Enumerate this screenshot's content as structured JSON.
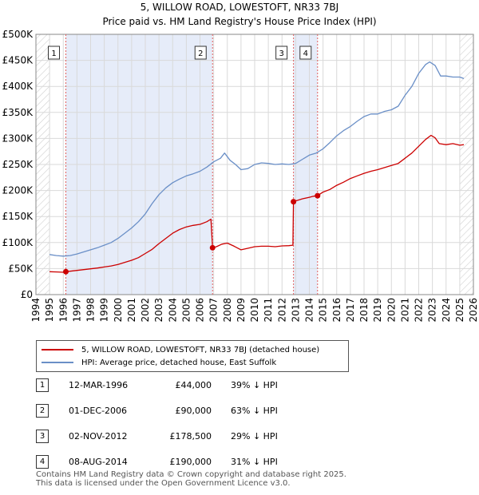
{
  "chart_data": {
    "type": "line",
    "title": "5, WILLOW ROAD, LOWESTOFT, NR33 7BJ",
    "subtitle": "Price paid vs. HM Land Registry's House Price Index (HPI)",
    "xlabel": "",
    "ylabel": "",
    "xlim": [
      1994,
      2026
    ],
    "ylim": [
      0,
      500000
    ],
    "y_ticks": [
      {
        "value": 0,
        "label": "£0"
      },
      {
        "value": 50000,
        "label": "£50K"
      },
      {
        "value": 100000,
        "label": "£100K"
      },
      {
        "value": 150000,
        "label": "£150K"
      },
      {
        "value": 200000,
        "label": "£200K"
      },
      {
        "value": 250000,
        "label": "£250K"
      },
      {
        "value": 300000,
        "label": "£300K"
      },
      {
        "value": 350000,
        "label": "£350K"
      },
      {
        "value": 400000,
        "label": "£400K"
      },
      {
        "value": 450000,
        "label": "£450K"
      },
      {
        "value": 500000,
        "label": "£500K"
      }
    ],
    "x_ticks": [
      "1994",
      "1995",
      "1996",
      "1997",
      "1998",
      "1999",
      "2000",
      "2001",
      "2002",
      "2003",
      "2004",
      "2005",
      "2006",
      "2007",
      "2008",
      "2009",
      "2010",
      "2011",
      "2012",
      "2013",
      "2014",
      "2015",
      "2016",
      "2017",
      "2018",
      "2019",
      "2020",
      "2021",
      "2022",
      "2023",
      "2024",
      "2025",
      "2026"
    ],
    "grid": true,
    "shaded_periods": [
      [
        1996.19,
        2006.92
      ],
      [
        2012.84,
        2014.6
      ]
    ],
    "hatched_regions": [
      [
        1994,
        1995
      ],
      [
        2025,
        2026
      ]
    ],
    "series": [
      {
        "name": "5, WILLOW ROAD, LOWESTOFT, NR33 7BJ (detached house)",
        "color": "#cc0000",
        "x": [
          1995.0,
          1995.5,
          1996.0,
          1996.19,
          1996.5,
          1997.0,
          1997.5,
          1998.0,
          1998.5,
          1999.0,
          1999.5,
          2000.0,
          2000.5,
          2001.0,
          2001.5,
          2002.0,
          2002.5,
          2003.0,
          2003.5,
          2004.0,
          2004.5,
          2005.0,
          2005.5,
          2006.0,
          2006.5,
          2006.8,
          2006.92,
          2007.2,
          2007.6,
          2008.0,
          2008.5,
          2009.0,
          2009.5,
          2010.0,
          2010.5,
          2011.0,
          2011.5,
          2012.0,
          2012.5,
          2012.8,
          2012.84,
          2013.0,
          2013.5,
          2014.0,
          2014.3,
          2014.6,
          2015.0,
          2015.5,
          2016.0,
          2016.5,
          2017.0,
          2017.5,
          2018.0,
          2018.5,
          2019.0,
          2019.5,
          2020.0,
          2020.5,
          2021.0,
          2021.5,
          2022.0,
          2022.5,
          2022.9,
          2023.2,
          2023.5,
          2024.0,
          2024.5,
          2025.0,
          2025.3
        ],
        "values": [
          44000,
          43500,
          43000,
          44000,
          45000,
          46500,
          48000,
          49500,
          51000,
          53000,
          55000,
          58000,
          62000,
          66000,
          71000,
          79000,
          87000,
          98000,
          108000,
          118000,
          125000,
          130000,
          133000,
          135000,
          140000,
          145000,
          90000,
          92000,
          97000,
          99000,
          93000,
          86000,
          89000,
          92000,
          93000,
          93000,
          92000,
          93500,
          94000,
          95000,
          178500,
          180000,
          184000,
          187000,
          189000,
          190000,
          197000,
          202000,
          210000,
          216000,
          223000,
          228000,
          233000,
          237000,
          240000,
          244000,
          248000,
          252000,
          262000,
          272000,
          285000,
          298000,
          306000,
          301000,
          290000,
          288000,
          290000,
          287000,
          288000
        ]
      },
      {
        "name": "HPI: Average price, detached house, East Suffolk",
        "color": "#6a8fc7",
        "x": [
          1995.0,
          1995.5,
          1996.0,
          1996.5,
          1997.0,
          1997.5,
          1998.0,
          1998.5,
          1999.0,
          1999.5,
          2000.0,
          2000.5,
          2001.0,
          2001.5,
          2002.0,
          2002.5,
          2003.0,
          2003.5,
          2004.0,
          2004.5,
          2005.0,
          2005.5,
          2006.0,
          2006.5,
          2007.0,
          2007.5,
          2007.8,
          2008.2,
          2008.6,
          2009.0,
          2009.5,
          2010.0,
          2010.5,
          2011.0,
          2011.5,
          2012.0,
          2012.5,
          2013.0,
          2013.5,
          2014.0,
          2014.5,
          2015.0,
          2015.5,
          2016.0,
          2016.5,
          2017.0,
          2017.5,
          2018.0,
          2018.5,
          2019.0,
          2019.5,
          2020.0,
          2020.5,
          2021.0,
          2021.5,
          2022.0,
          2022.5,
          2022.8,
          2023.2,
          2023.6,
          2024.0,
          2024.5,
          2025.0,
          2025.3
        ],
        "values": [
          77000,
          75000,
          74000,
          75000,
          78000,
          82000,
          86000,
          90000,
          95000,
          100000,
          108000,
          118000,
          128000,
          140000,
          155000,
          175000,
          192000,
          205000,
          215000,
          222000,
          228000,
          232000,
          237000,
          245000,
          255000,
          262000,
          272000,
          258000,
          250000,
          240000,
          242000,
          250000,
          253000,
          252000,
          250000,
          251000,
          250000,
          252000,
          260000,
          268000,
          272000,
          280000,
          292000,
          305000,
          315000,
          323000,
          333000,
          342000,
          347000,
          347000,
          352000,
          355000,
          362000,
          383000,
          400000,
          425000,
          442000,
          447000,
          440000,
          420000,
          420000,
          418000,
          418000,
          415000
        ]
      }
    ],
    "markers": [
      {
        "label": "1",
        "x": 1996.19,
        "y": 44000
      },
      {
        "label": "2",
        "x": 2006.92,
        "y": 90000
      },
      {
        "label": "3",
        "x": 2012.84,
        "y": 178500
      },
      {
        "label": "4",
        "x": 2014.6,
        "y": 190000
      }
    ]
  },
  "legend": {
    "property_label": "5, WILLOW ROAD, LOWESTOFT, NR33 7BJ (detached house)",
    "hpi_label": "HPI: Average price, detached house, East Suffolk"
  },
  "sales": [
    {
      "num": "1",
      "date": "12-MAR-1996",
      "price": "£44,000",
      "hpi": "39% ↓ HPI"
    },
    {
      "num": "2",
      "date": "01-DEC-2006",
      "price": "£90,000",
      "hpi": "63% ↓ HPI"
    },
    {
      "num": "3",
      "date": "02-NOV-2012",
      "price": "£178,500",
      "hpi": "29% ↓ HPI"
    },
    {
      "num": "4",
      "date": "08-AUG-2014",
      "price": "£190,000",
      "hpi": "31% ↓ HPI"
    }
  ],
  "footer": {
    "line1": "Contains HM Land Registry data © Crown copyright and database right 2025.",
    "line2": "This data is licensed under the Open Government Licence v3.0."
  }
}
